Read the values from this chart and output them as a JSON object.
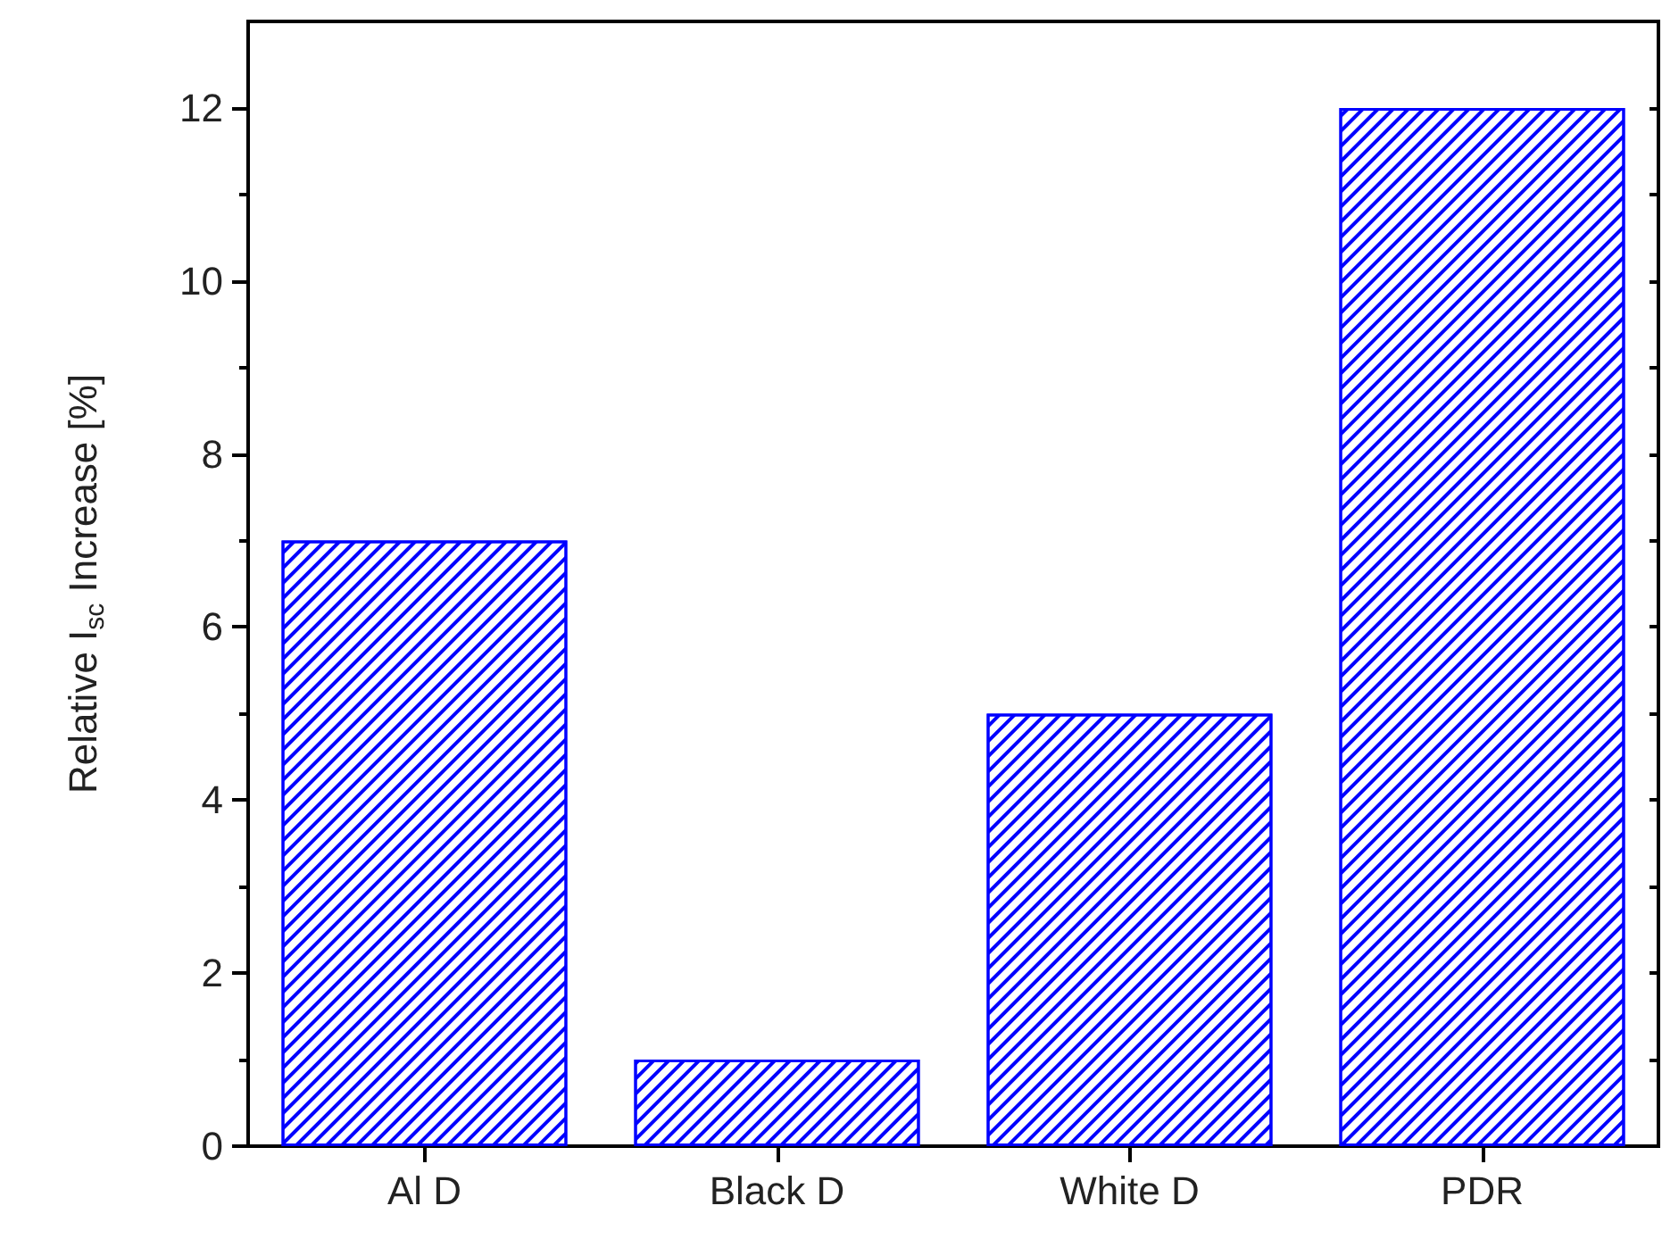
{
  "chart_data": {
    "type": "bar",
    "ylabel": "Relative I$_{sc}$ Increase [%]",
    "categories": [
      "Al D",
      "Black D",
      "White D",
      "PDR"
    ],
    "values": [
      7,
      1,
      5,
      12
    ],
    "color": "#0000ff",
    "ylim": [
      0,
      13
    ],
    "yticks": [
      0,
      {
        "value": 1,
        "label": null
      },
      2,
      {
        "value": 3,
        "label": null
      },
      4,
      {
        "value": 5,
        "label": null
      },
      6,
      {
        "value": 7,
        "label": null
      },
      8,
      {
        "value": 9,
        "label": null
      },
      10,
      {
        "value": 11,
        "label": null
      },
      12
    ],
    "grid": false
  }
}
